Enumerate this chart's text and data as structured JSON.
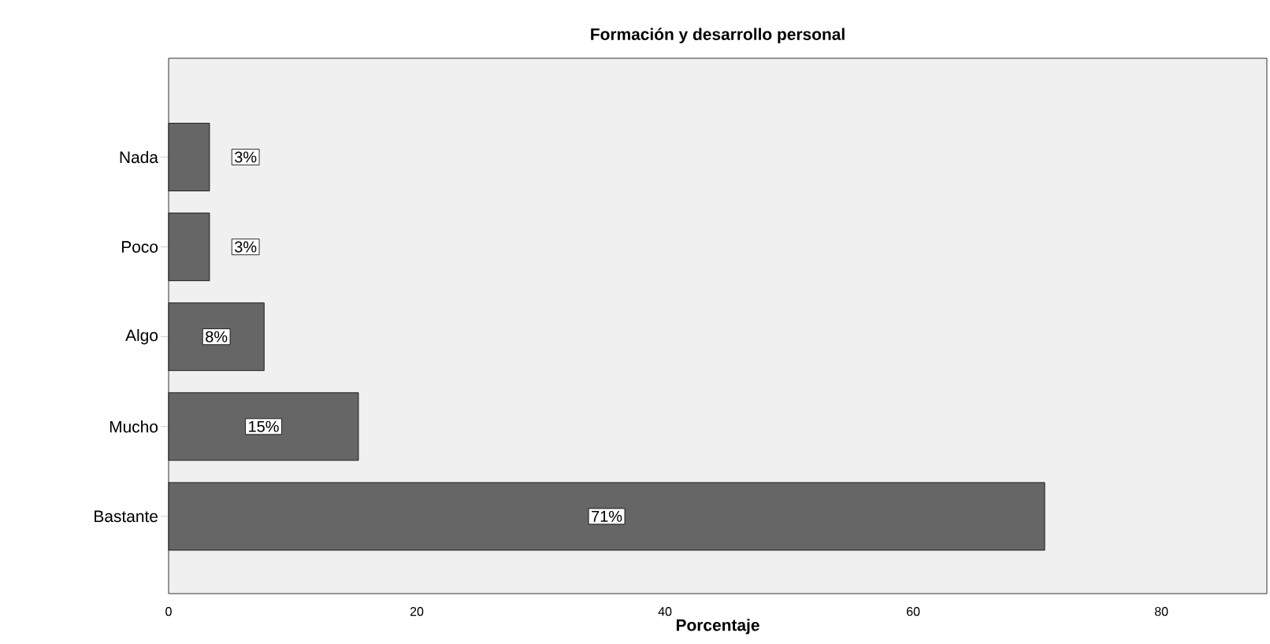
{
  "chart_data": {
    "type": "bar",
    "orientation": "horizontal",
    "title": "Formación y desarrollo personal",
    "xlabel": "Porcentaje",
    "categories": [
      "Nada",
      "Poco",
      "Algo",
      "Mucho",
      "Bastante"
    ],
    "values": [
      3.3,
      3.3,
      7.7,
      15.3,
      70.6
    ],
    "value_labels": [
      "3%",
      "3%",
      "8%",
      "15%",
      "71%"
    ],
    "color": "#666666",
    "xlim": [
      0,
      88.5
    ],
    "xticks": [
      0,
      20,
      40,
      60,
      80
    ]
  }
}
